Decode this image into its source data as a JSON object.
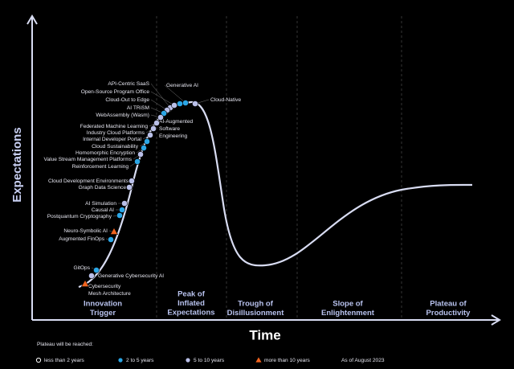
{
  "axes": {
    "y_label": "Expectations",
    "x_label": "Time"
  },
  "phases": [
    [
      "Innovation",
      "Trigger"
    ],
    [
      "Peak of",
      "Inflated",
      "Expectations"
    ],
    [
      "Trough of",
      "Disillusionment"
    ],
    [
      "Slope of",
      "Enlightenment"
    ],
    [
      "Plateau of",
      "Productivity"
    ]
  ],
  "legend": {
    "title": "Plateau will be reached:",
    "items": [
      {
        "label": "less than 2 years",
        "color": "#ffffff",
        "shape": "ring"
      },
      {
        "label": "2 to 5 years",
        "color": "#2ba6e6",
        "shape": "circle"
      },
      {
        "label": "5 to 10 years",
        "color": "#b9bfe8",
        "shape": "circle"
      },
      {
        "label": "more than 10 years",
        "color": "#f2641f",
        "shape": "triangle"
      }
    ],
    "note": "As of August 2023"
  },
  "technologies": [
    {
      "label": [
        "API-Centric SaaS"
      ],
      "plateau": "5 to 10 years"
    },
    {
      "label": [
        "Open-Source Program Office"
      ],
      "plateau": "5 to 10 years"
    },
    {
      "label": [
        "Cloud-Out to Edge"
      ],
      "plateau": "5 to 10 years"
    },
    {
      "label": [
        "AI TRiSM"
      ],
      "plateau": "2 to 5 years"
    },
    {
      "label": [
        "WebAssembly (Wasm)"
      ],
      "plateau": "5 to 10 years"
    },
    {
      "label": [
        "Generative AI"
      ],
      "plateau": "2 to 5 years"
    },
    {
      "label": [
        "Cloud-Native"
      ],
      "plateau": "5 to 10 years"
    },
    {
      "label": [
        "AI-Augmented",
        "Software",
        "Engineering"
      ],
      "plateau": "2 to 5 years"
    },
    {
      "label": [
        "Federated Machine Learning"
      ],
      "plateau": "5 to 10 years"
    },
    {
      "label": [
        "Industry Cloud Platforms"
      ],
      "plateau": "5 to 10 years"
    },
    {
      "label": [
        "Internal Developer Portal"
      ],
      "plateau": "5 to 10 years"
    },
    {
      "label": [
        "Cloud Sustainability"
      ],
      "plateau": "2 to 5 years"
    },
    {
      "label": [
        "Homomorphic Encryption"
      ],
      "plateau": "2 to 5 years"
    },
    {
      "label": [
        "Value Stream Management Platforms"
      ],
      "plateau": "5 to 10 years"
    },
    {
      "label": [
        "Reinforcement Learning"
      ],
      "plateau": "2 to 5 years"
    },
    {
      "label": [
        "Cloud Development Environments"
      ],
      "plateau": "5 to 10 years"
    },
    {
      "label": [
        "Graph Data Science"
      ],
      "plateau": "5 to 10 years"
    },
    {
      "label": [
        "AI Simulation"
      ],
      "plateau": "5 to 10 years"
    },
    {
      "label": [
        "Causal AI"
      ],
      "plateau": "2 to 5 years"
    },
    {
      "label": [
        "Postquantum Cryptography"
      ],
      "plateau": "2 to 5 years"
    },
    {
      "label": [
        "Neuro-Symbolic AI"
      ],
      "plateau": "more than 10 years"
    },
    {
      "label": [
        "Augmented FinOps"
      ],
      "plateau": "2 to 5 years"
    },
    {
      "label": [
        "GitOps"
      ],
      "plateau": "2 to 5 years"
    },
    {
      "label": [
        "Generative Cybersecurity AI"
      ],
      "plateau": "5 to 10 years"
    },
    {
      "label": [
        "Cybersecurity",
        "Mesh Architecture"
      ],
      "plateau": "more than 10 years"
    }
  ]
}
